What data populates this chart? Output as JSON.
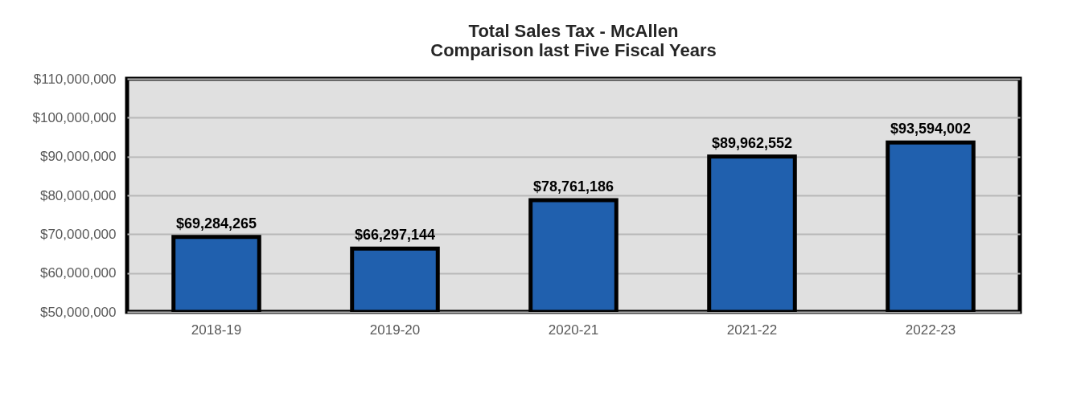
{
  "chart_data": {
    "type": "bar",
    "title": "Total Sales Tax - McAllen\nComparison last Five Fiscal Years",
    "categories": [
      "2018-19",
      "2019-20",
      "2020-21",
      "2021-22",
      "2022-23"
    ],
    "values": [
      69284265,
      66297144,
      78761186,
      89962552,
      93594002
    ],
    "value_labels": [
      "$69,284,265",
      "$66,297,144",
      "$78,761,186",
      "$89,962,552",
      "$93,594,002"
    ],
    "color": "#2060ae",
    "ylim": [
      50000000,
      110000000
    ],
    "yticks": [
      {
        "value": 50000000,
        "label": "$50,000,000"
      },
      {
        "value": 60000000,
        "label": "$60,000,000"
      },
      {
        "value": 70000000,
        "label": "$70,000,000"
      },
      {
        "value": 80000000,
        "label": "$80,000,000"
      },
      {
        "value": 90000000,
        "label": "$90,000,000"
      },
      {
        "value": 100000000,
        "label": "$100,000,000"
      },
      {
        "value": 110000000,
        "label": "$110,000,000"
      }
    ],
    "grid": "y"
  }
}
